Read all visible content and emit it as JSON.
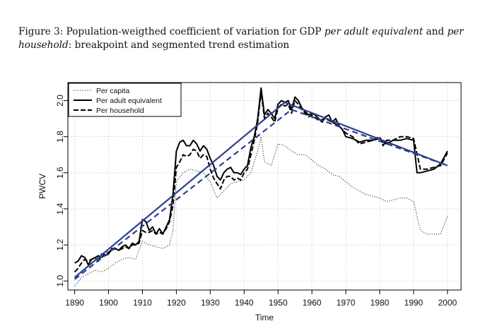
{
  "caption": {
    "prefix": "Figure 3: Population-weigthed coefficient of variation for GDP ",
    "italic1": "per adult equivalent",
    "mid": " and ",
    "italic2": "per household",
    "suffix": ": breakpoint and segmented trend estimation"
  },
  "chart_data": {
    "type": "line",
    "xlabel": "Time",
    "ylabel": "PWCV",
    "xlim": [
      1888,
      2004
    ],
    "ylim": [
      0.95,
      2.1
    ],
    "xticks": [
      1890,
      1900,
      1910,
      1920,
      1930,
      1940,
      1950,
      1960,
      1970,
      1980,
      1990,
      2000
    ],
    "yticks": [
      1.0,
      1.2,
      1.4,
      1.6,
      1.8,
      2.0
    ],
    "grid": true,
    "legend_position": "top-left",
    "colors": {
      "data": "#000000",
      "trend": "#2b3f8f"
    },
    "series": [
      {
        "name": "Per capita",
        "style": "dotted",
        "x": [
          1890,
          1892,
          1894,
          1896,
          1898,
          1900,
          1902,
          1904,
          1906,
          1908,
          1910,
          1912,
          1914,
          1916,
          1918,
          1919,
          1920,
          1922,
          1924,
          1926,
          1928,
          1930,
          1932,
          1934,
          1936,
          1938,
          1940,
          1942,
          1944,
          1945,
          1946,
          1948,
          1950,
          1952,
          1954,
          1956,
          1958,
          1960,
          1962,
          1964,
          1966,
          1968,
          1970,
          1972,
          1974,
          1976,
          1978,
          1980,
          1982,
          1984,
          1986,
          1988,
          1990,
          1992,
          1994,
          1996,
          1998,
          2000
        ],
        "y": [
          0.97,
          1.02,
          1.04,
          1.06,
          1.05,
          1.07,
          1.1,
          1.12,
          1.13,
          1.12,
          1.22,
          1.2,
          1.19,
          1.18,
          1.2,
          1.28,
          1.55,
          1.6,
          1.62,
          1.61,
          1.6,
          1.55,
          1.46,
          1.5,
          1.54,
          1.55,
          1.56,
          1.6,
          1.72,
          1.8,
          1.66,
          1.64,
          1.76,
          1.75,
          1.72,
          1.7,
          1.7,
          1.67,
          1.64,
          1.62,
          1.59,
          1.58,
          1.55,
          1.52,
          1.5,
          1.48,
          1.47,
          1.46,
          1.44,
          1.45,
          1.46,
          1.46,
          1.44,
          1.28,
          1.26,
          1.26,
          1.26,
          1.36
        ]
      },
      {
        "name": "Per adult equivalent",
        "style": "solid",
        "x": [
          1890,
          1891,
          1892,
          1893,
          1894,
          1895,
          1896,
          1897,
          1898,
          1899,
          1900,
          1901,
          1902,
          1903,
          1904,
          1905,
          1906,
          1907,
          1908,
          1909,
          1910,
          1911,
          1912,
          1913,
          1914,
          1915,
          1916,
          1917,
          1918,
          1919,
          1920,
          1921,
          1922,
          1923,
          1924,
          1925,
          1926,
          1927,
          1928,
          1929,
          1930,
          1931,
          1932,
          1933,
          1934,
          1935,
          1936,
          1937,
          1938,
          1939,
          1940,
          1941,
          1942,
          1943,
          1944,
          1945,
          1946,
          1947,
          1948,
          1949,
          1950,
          1951,
          1952,
          1953,
          1954,
          1955,
          1956,
          1957,
          1958,
          1959,
          1960,
          1961,
          1962,
          1963,
          1964,
          1965,
          1966,
          1967,
          1968,
          1969,
          1970,
          1972,
          1974,
          1976,
          1978,
          1980,
          1982,
          1984,
          1986,
          1988,
          1990,
          1991,
          1992,
          1994,
          1996,
          1998,
          2000
        ],
        "y": [
          1.1,
          1.11,
          1.14,
          1.13,
          1.09,
          1.12,
          1.13,
          1.11,
          1.15,
          1.14,
          1.15,
          1.18,
          1.18,
          1.17,
          1.19,
          1.2,
          1.18,
          1.21,
          1.2,
          1.22,
          1.34,
          1.33,
          1.28,
          1.3,
          1.26,
          1.29,
          1.26,
          1.3,
          1.34,
          1.48,
          1.72,
          1.77,
          1.78,
          1.75,
          1.75,
          1.78,
          1.76,
          1.72,
          1.75,
          1.73,
          1.68,
          1.64,
          1.58,
          1.56,
          1.6,
          1.62,
          1.63,
          1.6,
          1.6,
          1.59,
          1.62,
          1.64,
          1.74,
          1.8,
          1.9,
          2.07,
          1.92,
          1.95,
          1.93,
          1.9,
          1.98,
          2.0,
          1.99,
          2.0,
          1.95,
          2.02,
          2.0,
          1.96,
          1.94,
          1.92,
          1.93,
          1.92,
          1.9,
          1.88,
          1.91,
          1.92,
          1.88,
          1.9,
          1.86,
          1.84,
          1.8,
          1.79,
          1.77,
          1.78,
          1.78,
          1.79,
          1.76,
          1.78,
          1.78,
          1.79,
          1.78,
          1.6,
          1.6,
          1.61,
          1.62,
          1.65,
          1.72
        ]
      },
      {
        "name": "Per household",
        "style": "dashed",
        "x": [
          1890,
          1891,
          1892,
          1893,
          1894,
          1895,
          1896,
          1897,
          1898,
          1899,
          1900,
          1901,
          1902,
          1903,
          1904,
          1905,
          1906,
          1907,
          1908,
          1909,
          1910,
          1911,
          1912,
          1913,
          1914,
          1915,
          1916,
          1917,
          1918,
          1919,
          1920,
          1921,
          1922,
          1923,
          1924,
          1925,
          1926,
          1927,
          1928,
          1929,
          1930,
          1931,
          1932,
          1933,
          1934,
          1935,
          1936,
          1937,
          1938,
          1939,
          1940,
          1941,
          1942,
          1943,
          1944,
          1945,
          1946,
          1947,
          1948,
          1949,
          1950,
          1951,
          1952,
          1953,
          1954,
          1955,
          1956,
          1957,
          1958,
          1959,
          1960,
          1962,
          1964,
          1966,
          1968,
          1970,
          1972,
          1974,
          1976,
          1978,
          1980,
          1981,
          1982,
          1984,
          1986,
          1988,
          1990,
          1992,
          1994,
          1996,
          1998,
          2000
        ],
        "y": [
          1.05,
          1.07,
          1.1,
          1.12,
          1.11,
          1.12,
          1.13,
          1.14,
          1.13,
          1.15,
          1.16,
          1.17,
          1.18,
          1.17,
          1.18,
          1.19,
          1.18,
          1.2,
          1.2,
          1.21,
          1.28,
          1.27,
          1.27,
          1.28,
          1.26,
          1.27,
          1.26,
          1.29,
          1.33,
          1.42,
          1.63,
          1.66,
          1.7,
          1.69,
          1.7,
          1.73,
          1.72,
          1.68,
          1.7,
          1.69,
          1.62,
          1.57,
          1.54,
          1.51,
          1.56,
          1.58,
          1.58,
          1.56,
          1.57,
          1.56,
          1.6,
          1.62,
          1.7,
          1.78,
          1.88,
          2.05,
          1.9,
          1.93,
          1.91,
          1.88,
          1.96,
          1.98,
          1.97,
          1.98,
          1.93,
          2.0,
          1.98,
          1.95,
          1.93,
          1.91,
          1.92,
          1.89,
          1.9,
          1.88,
          1.86,
          1.82,
          1.8,
          1.76,
          1.77,
          1.78,
          1.8,
          1.75,
          1.78,
          1.78,
          1.8,
          1.8,
          1.79,
          1.62,
          1.62,
          1.63,
          1.64,
          1.71
        ]
      },
      {
        "name": "Per adult equivalent trend",
        "style": "solid",
        "x": [
          1890,
          1952,
          2000
        ],
        "y": [
          1.02,
          1.99,
          1.64
        ]
      },
      {
        "name": "Per household trend",
        "style": "dashed",
        "x": [
          1890,
          1954,
          2000
        ],
        "y": [
          1.01,
          1.95,
          1.64
        ]
      }
    ]
  }
}
